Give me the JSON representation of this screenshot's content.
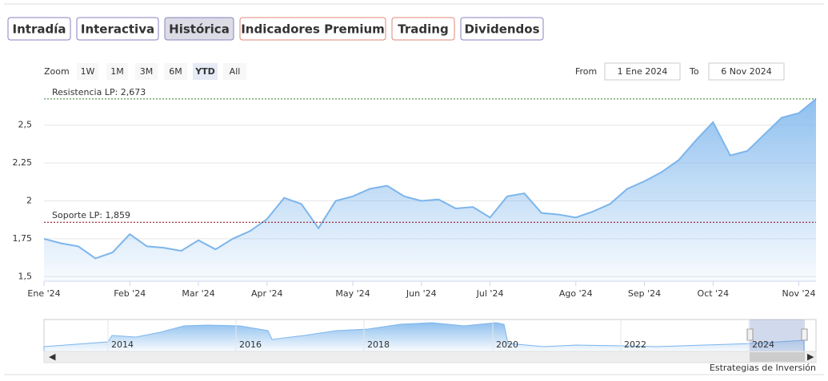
{
  "tabs": [
    "Intradía",
    "Interactiva",
    "Histórica",
    "Indicadores Premium",
    "Trading",
    "Dividendos"
  ],
  "zoom": {
    "label": "Zoom",
    "buttons": [
      "1W",
      "1M",
      "3M",
      "6M",
      "YTD",
      "All"
    ]
  },
  "range": {
    "from_label": "From",
    "from": "1 Ene 2024",
    "to_label": "To",
    "to": "6 Nov 2024"
  },
  "chart_data": {
    "type": "area",
    "color": "#7cb5ec",
    "categories": [
      "Ene '24",
      null,
      null,
      null,
      null,
      "Feb '24",
      null,
      null,
      null,
      "Mar '24",
      null,
      null,
      null,
      "Apr '24",
      null,
      null,
      null,
      null,
      "May '24",
      null,
      null,
      null,
      "Jun '24",
      null,
      null,
      null,
      "Jul '24",
      null,
      null,
      null,
      null,
      "Ago '24",
      null,
      null,
      null,
      "Sep '24",
      null,
      null,
      null,
      "Oct '24",
      null,
      null,
      null,
      null,
      "Nov '24",
      null
    ],
    "values": [
      1.75,
      1.72,
      1.7,
      1.62,
      1.66,
      1.78,
      1.7,
      1.69,
      1.67,
      1.74,
      1.68,
      1.75,
      1.8,
      1.88,
      2.02,
      1.98,
      1.82,
      2.0,
      2.03,
      2.08,
      2.1,
      2.03,
      2.0,
      2.01,
      1.95,
      1.96,
      1.89,
      2.03,
      2.05,
      1.92,
      1.91,
      1.89,
      1.93,
      1.98,
      2.08,
      2.13,
      2.19,
      2.27,
      2.4,
      2.52,
      2.3,
      2.33,
      2.44,
      2.55,
      2.58,
      2.673
    ],
    "ylim": [
      1.47,
      2.72
    ],
    "yticks": [
      {
        "value": 1.5,
        "label": "1,5"
      },
      {
        "value": 1.75,
        "label": "1,75"
      },
      2,
      {
        "value": 2.25,
        "label": "2,25"
      },
      {
        "value": 2.5,
        "label": "2,5"
      }
    ],
    "grid": true,
    "plot_lines": [
      {
        "label": "Resistencia LP: 2,673",
        "value": 2.673,
        "color": "#2e7d32"
      },
      {
        "label": "Soporte LP: 1,859",
        "value": 1.859,
        "color": "#8b0000"
      }
    ]
  },
  "navigator": {
    "labels": [
      "2014",
      "2016",
      "2018",
      "2020",
      "2022",
      "2024"
    ]
  },
  "footer": "Estrategias de Inversión"
}
